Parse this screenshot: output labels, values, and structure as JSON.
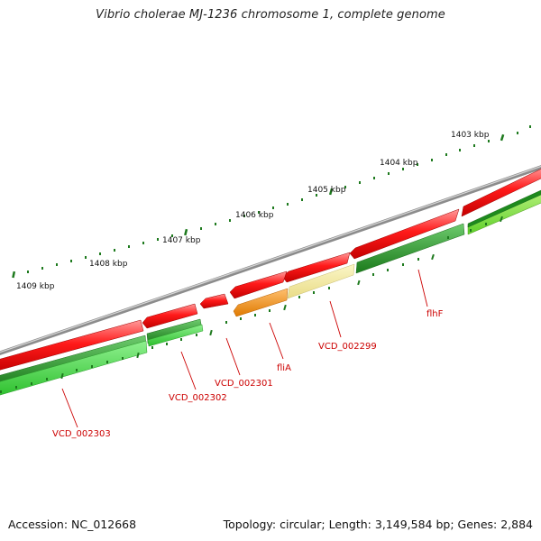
{
  "title": "Vibrio cholerae MJ-1236 chromosome 1, complete genome",
  "footer": {
    "accession": "Accession: NC_012668",
    "summary": "Topology: circular; Length: 3,149,584 bp; Genes: 2,884"
  },
  "ruler": {
    "labels": [
      "1403 kbp",
      "1404 kbp",
      "1405 kbp",
      "1406 kbp",
      "1407 kbp",
      "1408 kbp",
      "1409 kbp"
    ]
  },
  "genes": [
    {
      "label": "flhF",
      "color": "#1e8a1e",
      "ring": "outer-color"
    },
    {
      "label": "VCD_002299",
      "color": "#f0e89a",
      "ring": "outer-color"
    },
    {
      "label": "fliA",
      "color": "#f08c00",
      "ring": "outer-color"
    },
    {
      "label": "VCD_002301",
      "color": "#ff0000",
      "ring": "forward"
    },
    {
      "label": "VCD_002302",
      "color": "#1e8a1e",
      "ring": "outer-color"
    },
    {
      "label": "VCD_002303",
      "color": "#33cc33",
      "ring": "outer-color"
    }
  ],
  "colors": {
    "forward_strand": "#ff0000",
    "backbone": "#8c8c8c",
    "tick": "#1e7a1e",
    "label_red": "#cc0000"
  }
}
